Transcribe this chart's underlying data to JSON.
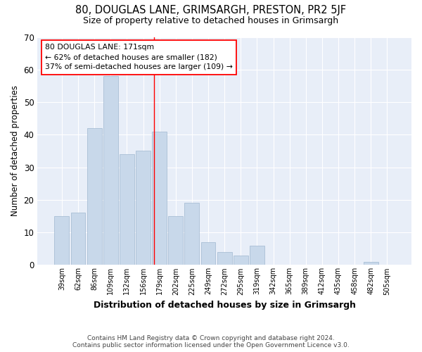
{
  "title": "80, DOUGLAS LANE, GRIMSARGH, PRESTON, PR2 5JF",
  "subtitle": "Size of property relative to detached houses in Grimsargh",
  "xlabel": "Distribution of detached houses by size in Grimsargh",
  "ylabel": "Number of detached properties",
  "bar_color": "#c8d8ea",
  "bar_edge_color": "#a0b8d0",
  "background_color": "#e8eef8",
  "categories": [
    "39sqm",
    "62sqm",
    "86sqm",
    "109sqm",
    "132sqm",
    "156sqm",
    "179sqm",
    "202sqm",
    "225sqm",
    "249sqm",
    "272sqm",
    "295sqm",
    "319sqm",
    "342sqm",
    "365sqm",
    "389sqm",
    "412sqm",
    "435sqm",
    "458sqm",
    "482sqm",
    "505sqm"
  ],
  "values": [
    15,
    16,
    42,
    58,
    34,
    35,
    41,
    15,
    19,
    7,
    4,
    3,
    6,
    0,
    0,
    0,
    0,
    0,
    0,
    1,
    0
  ],
  "ylim": [
    0,
    70
  ],
  "yticks": [
    0,
    10,
    20,
    30,
    40,
    50,
    60,
    70
  ],
  "vline_bin": 5.65,
  "annotation_text": "80 DOUGLAS LANE: 171sqm\n← 62% of detached houses are smaller (182)\n37% of semi-detached houses are larger (109) →",
  "annotation_box_color": "white",
  "annotation_box_edge_color": "red",
  "vline_color": "red",
  "footer_text": "Contains HM Land Registry data © Crown copyright and database right 2024.\nContains public sector information licensed under the Open Government Licence v3.0."
}
